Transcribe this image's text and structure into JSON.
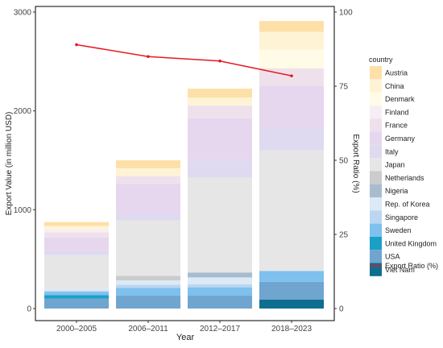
{
  "chart_data": {
    "type": "bar",
    "stacked": true,
    "categories": [
      "2000–2005",
      "2006–2011",
      "2012–2017",
      "2018–2023"
    ],
    "xlabel": "Year",
    "ylabel": "Export Value (in million USD)",
    "y2label": "Export Ratio (%)",
    "ylim": [
      0,
      3000
    ],
    "y2lim": [
      0,
      100
    ],
    "yticks": [
      "0",
      "1000",
      "2000",
      "3000"
    ],
    "y2ticks": [
      "0",
      "25",
      "50",
      "75",
      "100"
    ],
    "grid": false,
    "legend_title": "country",
    "legend_position": "right",
    "series": [
      {
        "name": "Viet Nam",
        "color": "#0d6e8f",
        "values": [
          0,
          0,
          0,
          90
        ]
      },
      {
        "name": "USA",
        "color": "#6fa5cf",
        "values": [
          100,
          130,
          130,
          180
        ]
      },
      {
        "name": "United Kingdom",
        "color": "#1aa0c6",
        "values": [
          35,
          0,
          0,
          0
        ]
      },
      {
        "name": "Sweden",
        "color": "#7ec0ee",
        "values": [
          35,
          80,
          85,
          110
        ]
      },
      {
        "name": "Singapore",
        "color": "#bcd6ef",
        "values": [
          10,
          30,
          30,
          0
        ]
      },
      {
        "name": "Rep. of Korea",
        "color": "#dce9f6",
        "values": [
          20,
          45,
          70,
          0
        ]
      },
      {
        "name": "Nigeria",
        "color": "#a7bccf",
        "values": [
          0,
          0,
          50,
          0
        ]
      },
      {
        "name": "Netherlands",
        "color": "#cccccc",
        "values": [
          0,
          45,
          0,
          0
        ]
      },
      {
        "name": "Japan",
        "color": "#e6e6e6",
        "values": [
          340,
          560,
          960,
          1220
        ]
      },
      {
        "name": "Italy",
        "color": "#dfdaf0",
        "values": [
          50,
          80,
          180,
          230
        ]
      },
      {
        "name": "Germany",
        "color": "#e6d6ee",
        "values": [
          130,
          290,
          420,
          420
        ]
      },
      {
        "name": "France",
        "color": "#efe1ec",
        "values": [
          50,
          80,
          130,
          180
        ]
      },
      {
        "name": "Finland",
        "color": "#f7eef5",
        "values": [
          30,
          0,
          0,
          0
        ]
      },
      {
        "name": "Denmark",
        "color": "#fffbe6",
        "values": [
          0,
          0,
          0,
          190
        ]
      },
      {
        "name": "China",
        "color": "#fff3d6",
        "values": [
          35,
          80,
          80,
          180
        ]
      },
      {
        "name": "Austria",
        "color": "#fde0a8",
        "values": [
          40,
          80,
          90,
          110
        ]
      }
    ],
    "legend_order": [
      "Austria",
      "China",
      "Denmark",
      "Finland",
      "France",
      "Germany",
      "Italy",
      "Japan",
      "Netherlands",
      "Nigeria",
      "Rep. of Korea",
      "Singapore",
      "Sweden",
      "United Kingdom",
      "USA",
      "Viet Nam"
    ],
    "line_series": {
      "name": "Export Ratio (%)",
      "color": "#e8191f",
      "values": [
        89,
        85,
        83.5,
        78.5
      ]
    }
  }
}
